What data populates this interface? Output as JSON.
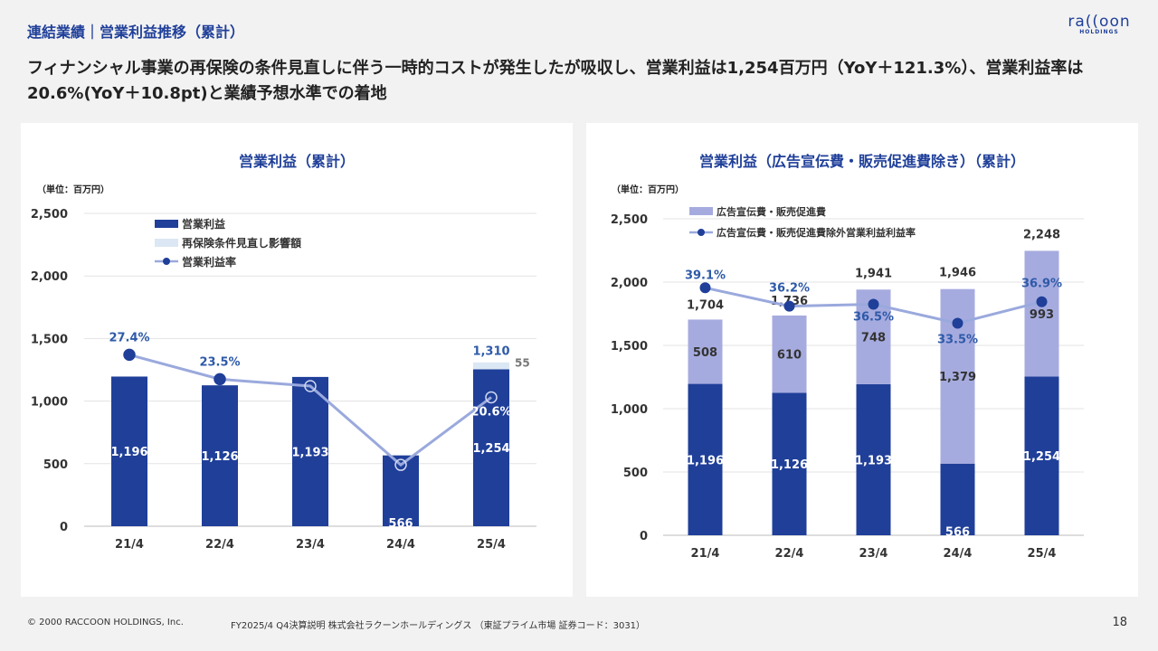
{
  "header": {
    "section": "連結業績｜営業利益推移（累計）",
    "logo_text": "ra((oon",
    "logo_sub": "HOLDINGS",
    "headline": "フィナンシャル事業の再保険の条件見直しに伴う一時的コストが発生したが吸収し、営業利益は1,254百万円（YoY＋121.3%）、営業利益率は20.6%(YoY＋10.8pt)と業績予想水準での着地"
  },
  "footer": {
    "copyright": "© 2000 RACCOON HOLDINGS, Inc.",
    "doc": "FY2025/4 Q4決算説明 株式会社ラクーンホールディングス （東証プライム市場 証券コード：3031）",
    "page": "18"
  },
  "colors": {
    "dark_bar": "#1f3f99",
    "light_bar": "#a6abdf",
    "pale_bar": "#dbe7f4",
    "line": "#9aa9dd",
    "marker": "#1f3f99",
    "label_blue": "#2e5aa8"
  },
  "chart_data": [
    {
      "type": "bar",
      "title": "営業利益（累計）",
      "unit_label": "（単位：百万円）",
      "categories": [
        "21/4",
        "22/4",
        "23/4",
        "24/4",
        "25/4"
      ],
      "yticks": [
        "0",
        "500",
        "1,000",
        "1,500",
        "2,000",
        "2,500"
      ],
      "ylim": [
        0,
        2500
      ],
      "series": [
        {
          "name": "営業利益",
          "values": [
            1196,
            1126,
            1193,
            566,
            1254
          ],
          "labels": [
            "1,196",
            "1,126",
            "1,193",
            "566",
            "1,254"
          ]
        },
        {
          "name": "再保険条件見直し影響額",
          "values": [
            0,
            0,
            0,
            0,
            55
          ],
          "labels": [
            "",
            "",
            "",
            "",
            "55"
          ]
        }
      ],
      "total_label_25": "1,310",
      "rate": {
        "name": "営業利益率",
        "values": [
          27.4,
          23.5,
          22.4,
          9.8,
          20.6
        ],
        "labels": [
          "27.4%",
          "23.5%",
          "22.4%",
          "9.8%",
          "20.6%"
        ]
      },
      "legend": "top-left",
      "grid": true
    },
    {
      "type": "bar",
      "title": "営業利益（広告宣伝費・販売促進費除き）（累計）",
      "unit_label": "（単位：百万円）",
      "categories": [
        "21/4",
        "22/4",
        "23/4",
        "24/4",
        "25/4"
      ],
      "yticks": [
        "0",
        "500",
        "1,000",
        "1,500",
        "2,000",
        "2,500"
      ],
      "ylim": [
        0,
        2500
      ],
      "series": [
        {
          "name": "営業利益",
          "values": [
            1196,
            1126,
            1193,
            566,
            1254
          ],
          "labels": [
            "1,196",
            "1,126",
            "1,193",
            "566",
            "1,254"
          ]
        },
        {
          "name": "広告宣伝費・販売促進費",
          "values": [
            508,
            610,
            748,
            1379,
            993
          ],
          "labels": [
            "508",
            "610",
            "748",
            "1,379",
            "993"
          ]
        }
      ],
      "totals": [
        "1,704",
        "1,736",
        "1,941",
        "1,946",
        "2,248"
      ],
      "rate": {
        "name": "広告宣伝費・販売促進費除外営業利益利益率",
        "values": [
          39.1,
          36.2,
          36.5,
          33.5,
          36.9
        ],
        "labels": [
          "39.1%",
          "36.2%",
          "36.5%",
          "33.5%",
          "36.9%"
        ]
      },
      "legend": "top-left",
      "grid": true
    }
  ]
}
